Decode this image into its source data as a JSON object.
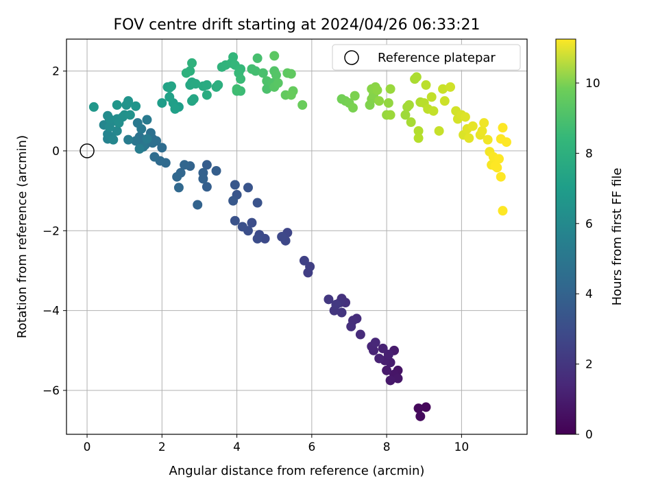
{
  "chart_data": {
    "type": "scatter",
    "title": "FOV centre drift starting at 2024/04/26 06:33:21",
    "xlabel": "Angular distance from reference (arcmin)",
    "ylabel": "Rotation from reference (arcmin)",
    "xlim": [
      -0.55,
      11.75
    ],
    "ylim": [
      -7.1,
      2.8
    ],
    "xticks": [
      0,
      2,
      4,
      6,
      8,
      10
    ],
    "yticks": [
      -6,
      -4,
      -2,
      0,
      2
    ],
    "grid": true,
    "legend": {
      "position": "top-right",
      "entries": [
        "Reference platepar"
      ]
    },
    "reference_point": {
      "x": 0,
      "y": 0
    },
    "colorbar": {
      "label": "Hours from first FF file",
      "range": [
        0,
        11.25
      ],
      "ticks": [
        0,
        2,
        4,
        6,
        8,
        10
      ],
      "colormap": "viridis"
    },
    "points": [
      [
        9.05,
        -6.42,
        0.2
      ],
      [
        8.85,
        -6.45,
        0.25
      ],
      [
        8.9,
        -6.65,
        0.3
      ],
      [
        8.3,
        -5.5,
        0.6
      ],
      [
        8.2,
        -5.6,
        0.65
      ],
      [
        8.3,
        -5.7,
        0.7
      ],
      [
        8.1,
        -5.75,
        0.75
      ],
      [
        8.0,
        -5.5,
        0.8
      ],
      [
        8.2,
        -5.0,
        0.85
      ],
      [
        8.1,
        -5.3,
        0.9
      ],
      [
        7.95,
        -5.25,
        0.95
      ],
      [
        8.05,
        -5.1,
        1.0
      ],
      [
        7.9,
        -4.95,
        1.05
      ],
      [
        7.8,
        -5.2,
        1.1
      ],
      [
        7.65,
        -5.0,
        1.15
      ],
      [
        7.6,
        -4.9,
        1.2
      ],
      [
        7.7,
        -4.8,
        1.25
      ],
      [
        7.3,
        -4.6,
        1.4
      ],
      [
        7.2,
        -4.2,
        1.45
      ],
      [
        7.1,
        -4.25,
        1.5
      ],
      [
        7.05,
        -4.4,
        1.55
      ],
      [
        6.9,
        -3.8,
        1.6
      ],
      [
        6.8,
        -3.7,
        1.65
      ],
      [
        6.75,
        -3.8,
        1.7
      ],
      [
        6.8,
        -4.05,
        1.75
      ],
      [
        6.6,
        -4.0,
        1.8
      ],
      [
        6.45,
        -3.72,
        1.85
      ],
      [
        6.65,
        -3.85,
        1.9
      ],
      [
        5.9,
        -3.05,
        2.1
      ],
      [
        5.95,
        -2.9,
        2.15
      ],
      [
        5.8,
        -2.75,
        2.2
      ],
      [
        5.35,
        -2.05,
        2.4
      ],
      [
        5.3,
        -2.25,
        2.45
      ],
      [
        5.2,
        -2.15,
        2.5
      ],
      [
        4.75,
        -2.2,
        2.55
      ],
      [
        4.6,
        -2.1,
        2.6
      ],
      [
        4.55,
        -2.2,
        2.65
      ],
      [
        4.4,
        -1.8,
        2.7
      ],
      [
        4.3,
        -2.0,
        2.75
      ],
      [
        4.15,
        -1.9,
        2.8
      ],
      [
        3.95,
        -1.75,
        2.85
      ],
      [
        4.55,
        -1.3,
        2.9
      ],
      [
        4.3,
        -0.92,
        2.95
      ],
      [
        4.0,
        -1.1,
        3.0
      ],
      [
        3.95,
        -0.85,
        3.05
      ],
      [
        3.9,
        -1.25,
        3.1
      ],
      [
        3.2,
        -0.35,
        3.3
      ],
      [
        3.45,
        -0.5,
        3.35
      ],
      [
        3.2,
        -0.9,
        3.4
      ],
      [
        3.1,
        -0.55,
        3.45
      ],
      [
        3.1,
        -0.7,
        3.5
      ],
      [
        2.95,
        -1.35,
        3.55
      ],
      [
        2.75,
        -0.38,
        3.6
      ],
      [
        2.6,
        -0.35,
        3.65
      ],
      [
        2.5,
        -0.55,
        3.7
      ],
      [
        2.4,
        -0.65,
        3.75
      ],
      [
        2.45,
        -0.92,
        3.8
      ],
      [
        2.1,
        -0.3,
        3.85
      ],
      [
        1.95,
        -0.25,
        3.9
      ],
      [
        2.0,
        0.08,
        3.95
      ],
      [
        1.8,
        -0.15,
        4.0
      ],
      [
        1.75,
        0.3,
        4.05
      ],
      [
        1.85,
        0.25,
        4.1
      ],
      [
        1.75,
        0.2,
        4.15
      ],
      [
        1.7,
        0.45,
        4.2
      ],
      [
        1.55,
        0.15,
        4.25
      ],
      [
        1.4,
        0.35,
        4.3
      ],
      [
        1.45,
        0.2,
        4.35
      ],
      [
        1.3,
        0.25,
        4.4
      ],
      [
        1.5,
        0.1,
        4.45
      ],
      [
        1.45,
        0.55,
        4.5
      ],
      [
        1.35,
        0.7,
        4.55
      ],
      [
        1.6,
        0.78,
        4.6
      ],
      [
        1.6,
        0.3,
        4.65
      ],
      [
        1.1,
        0.28,
        4.7
      ],
      [
        1.4,
        0.05,
        4.75
      ],
      [
        0.55,
        0.3,
        5.0
      ],
      [
        0.65,
        0.35,
        5.05
      ],
      [
        0.55,
        0.42,
        5.1
      ],
      [
        0.45,
        0.65,
        5.15
      ],
      [
        0.7,
        0.28,
        5.2
      ],
      [
        0.8,
        0.5,
        5.25
      ],
      [
        0.75,
        0.75,
        5.3
      ],
      [
        0.6,
        0.6,
        5.35
      ],
      [
        0.55,
        0.88,
        5.4
      ],
      [
        0.6,
        0.8,
        5.45
      ],
      [
        0.8,
        0.8,
        5.5
      ],
      [
        0.85,
        0.7,
        5.55
      ],
      [
        0.95,
        0.85,
        5.6
      ],
      [
        1.0,
        0.9,
        5.65
      ],
      [
        1.15,
        0.9,
        5.7
      ],
      [
        1.05,
        1.15,
        5.75
      ],
      [
        1.1,
        1.25,
        5.8
      ],
      [
        1.3,
        1.12,
        5.85
      ],
      [
        0.8,
        1.15,
        5.9
      ],
      [
        0.18,
        1.1,
        5.95
      ],
      [
        2.0,
        1.2,
        6.2
      ],
      [
        2.45,
        1.1,
        6.25
      ],
      [
        2.3,
        1.2,
        6.3
      ],
      [
        2.35,
        1.05,
        6.35
      ],
      [
        2.2,
        1.35,
        6.4
      ],
      [
        2.15,
        1.6,
        6.45
      ],
      [
        2.2,
        1.58,
        6.5
      ],
      [
        2.25,
        1.62,
        6.55
      ],
      [
        2.8,
        1.25,
        6.6
      ],
      [
        2.85,
        1.3,
        6.65
      ],
      [
        2.75,
        1.65,
        6.7
      ],
      [
        2.8,
        1.72,
        6.75
      ],
      [
        2.9,
        1.68,
        6.8
      ],
      [
        3.1,
        1.62,
        6.85
      ],
      [
        3.2,
        1.65,
        6.9
      ],
      [
        3.2,
        1.4,
        6.95
      ],
      [
        3.45,
        1.6,
        7.0
      ],
      [
        3.5,
        1.65,
        7.05
      ],
      [
        2.75,
        2.0,
        7.1
      ],
      [
        2.65,
        1.95,
        7.15
      ],
      [
        2.8,
        2.2,
        7.2
      ],
      [
        3.6,
        2.1,
        7.25
      ],
      [
        3.7,
        2.15,
        7.3
      ],
      [
        3.85,
        2.2,
        7.35
      ],
      [
        3.9,
        2.35,
        7.4
      ],
      [
        3.95,
        2.15,
        7.45
      ],
      [
        4.1,
        2.05,
        7.5
      ],
      [
        4.05,
        1.95,
        7.55
      ],
      [
        4.1,
        1.8,
        7.6
      ],
      [
        4.1,
        1.5,
        7.65
      ],
      [
        4.0,
        1.5,
        7.7
      ],
      [
        4.0,
        1.55,
        7.75
      ],
      [
        4.4,
        2.05,
        7.8
      ],
      [
        4.5,
        2.0,
        7.85
      ],
      [
        4.55,
        2.32,
        7.9
      ],
      [
        4.7,
        1.95,
        7.95
      ],
      [
        4.8,
        1.55,
        8.0
      ],
      [
        4.8,
        1.75,
        8.05
      ],
      [
        4.95,
        1.7,
        8.1
      ],
      [
        5.0,
        2.0,
        8.15
      ],
      [
        5.05,
        1.9,
        8.2
      ],
      [
        5.0,
        1.6,
        8.25
      ],
      [
        5.1,
        1.7,
        8.3
      ],
      [
        5.0,
        2.38,
        8.35
      ],
      [
        5.35,
        1.95,
        8.4
      ],
      [
        5.45,
        1.93,
        8.45
      ],
      [
        5.3,
        1.4,
        8.5
      ],
      [
        5.5,
        1.5,
        8.55
      ],
      [
        5.45,
        1.4,
        8.6
      ],
      [
        5.75,
        1.15,
        8.65
      ],
      [
        6.8,
        1.3,
        8.8
      ],
      [
        6.9,
        1.25,
        8.85
      ],
      [
        7.0,
        1.2,
        8.9
      ],
      [
        7.1,
        1.08,
        8.95
      ],
      [
        7.15,
        1.38,
        9.0
      ],
      [
        7.55,
        1.15,
        9.05
      ],
      [
        7.6,
        1.3,
        9.1
      ],
      [
        7.65,
        1.4,
        9.15
      ],
      [
        7.6,
        1.55,
        9.2
      ],
      [
        7.7,
        1.6,
        9.25
      ],
      [
        7.75,
        1.52,
        9.3
      ],
      [
        7.8,
        1.25,
        9.35
      ],
      [
        8.05,
        1.2,
        9.4
      ],
      [
        8.0,
        0.9,
        9.45
      ],
      [
        8.1,
        1.55,
        9.5
      ],
      [
        8.1,
        0.9,
        9.55
      ],
      [
        8.5,
        0.9,
        9.6
      ],
      [
        8.55,
        1.1,
        9.65
      ],
      [
        8.6,
        1.15,
        9.7
      ],
      [
        8.65,
        0.72,
        9.75
      ],
      [
        8.75,
        1.8,
        9.8
      ],
      [
        8.8,
        1.85,
        9.85
      ],
      [
        8.9,
        1.22,
        9.9
      ],
      [
        8.85,
        0.5,
        9.95
      ],
      [
        8.85,
        0.32,
        10.0
      ],
      [
        9.0,
        1.2,
        10.05
      ],
      [
        9.05,
        1.65,
        10.1
      ],
      [
        9.1,
        1.05,
        10.15
      ],
      [
        9.2,
        1.35,
        10.2
      ],
      [
        9.25,
        1.0,
        10.25
      ],
      [
        9.4,
        0.5,
        10.3
      ],
      [
        9.5,
        1.55,
        10.35
      ],
      [
        9.55,
        1.25,
        10.4
      ],
      [
        9.7,
        1.6,
        10.45
      ],
      [
        9.85,
        1.0,
        10.5
      ],
      [
        9.9,
        0.8,
        10.55
      ],
      [
        10.0,
        0.9,
        10.6
      ],
      [
        10.05,
        0.4,
        10.65
      ],
      [
        10.1,
        0.85,
        10.7
      ],
      [
        10.15,
        0.55,
        10.75
      ],
      [
        10.2,
        0.32,
        10.8
      ],
      [
        10.3,
        0.62,
        10.85
      ],
      [
        10.5,
        0.4,
        10.9
      ],
      [
        10.55,
        0.5,
        10.95
      ],
      [
        10.6,
        0.7,
        11.0
      ],
      [
        10.7,
        0.28,
        11.05
      ],
      [
        10.75,
        -0.02,
        11.1
      ],
      [
        10.8,
        -0.35,
        11.15
      ],
      [
        10.85,
        -0.15,
        11.2
      ],
      [
        10.9,
        -0.38,
        11.25
      ],
      [
        10.95,
        -0.42,
        11.25
      ],
      [
        11.0,
        -0.2,
        11.25
      ],
      [
        11.05,
        0.3,
        11.25
      ],
      [
        11.1,
        0.58,
        11.25
      ],
      [
        11.2,
        0.22,
        11.25
      ],
      [
        11.05,
        -0.65,
        11.25
      ],
      [
        11.1,
        -1.5,
        11.25
      ]
    ]
  }
}
